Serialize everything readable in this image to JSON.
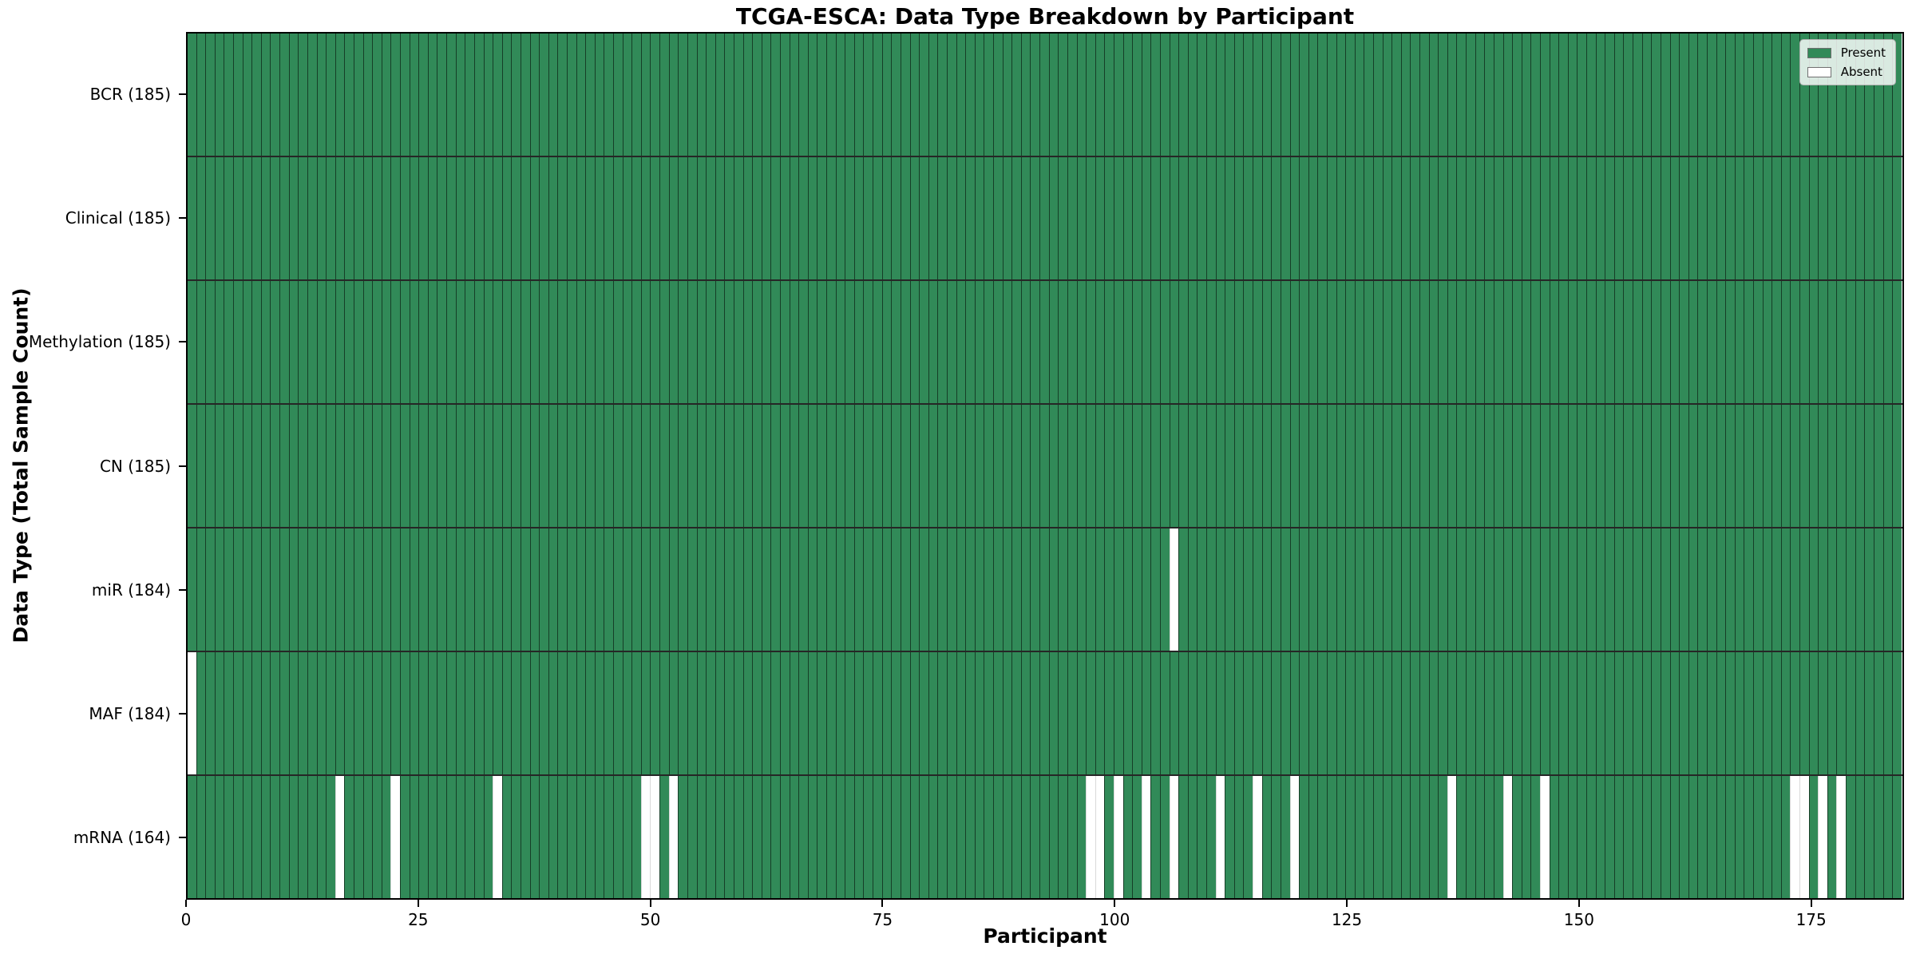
{
  "chart_data": {
    "type": "heatmap",
    "title": "TCGA-ESCA: Data Type Breakdown by Participant",
    "xlabel": "Participant",
    "ylabel": "Data Type (Total Sample Count)",
    "n_participants": 185,
    "x_ticks": [
      0,
      25,
      50,
      75,
      100,
      125,
      150,
      175
    ],
    "xlim": [
      0,
      185
    ],
    "grid": false,
    "colors": {
      "present": "#318a58",
      "absent": "#ffffff",
      "bar_edge": "#2a2a2a",
      "spine": "#000000"
    },
    "legend": {
      "position": "upper right",
      "items": [
        {
          "label": "Present",
          "color": "#318a58"
        },
        {
          "label": "Absent",
          "color": "#ffffff"
        }
      ]
    },
    "rows": [
      {
        "name": "BCR",
        "label": "BCR (185)",
        "count": 185,
        "absent_participants": []
      },
      {
        "name": "Clinical",
        "label": "Clinical (185)",
        "count": 185,
        "absent_participants": []
      },
      {
        "name": "Methylation",
        "label": "Methylation (185)",
        "count": 185,
        "absent_participants": []
      },
      {
        "name": "CN",
        "label": "CN (185)",
        "count": 185,
        "absent_participants": []
      },
      {
        "name": "miR",
        "label": "miR (184)",
        "count": 184,
        "absent_participants": [
          107
        ]
      },
      {
        "name": "MAF",
        "label": "MAF (184)",
        "count": 184,
        "absent_participants": [
          1
        ]
      },
      {
        "name": "mRNA",
        "label": "mRNA (164)",
        "count": 164,
        "absent_participants": [
          17,
          23,
          34,
          50,
          51,
          53,
          98,
          99,
          101,
          104,
          107,
          112,
          116,
          120,
          137,
          143,
          147,
          174,
          175,
          177,
          179
        ]
      }
    ]
  }
}
